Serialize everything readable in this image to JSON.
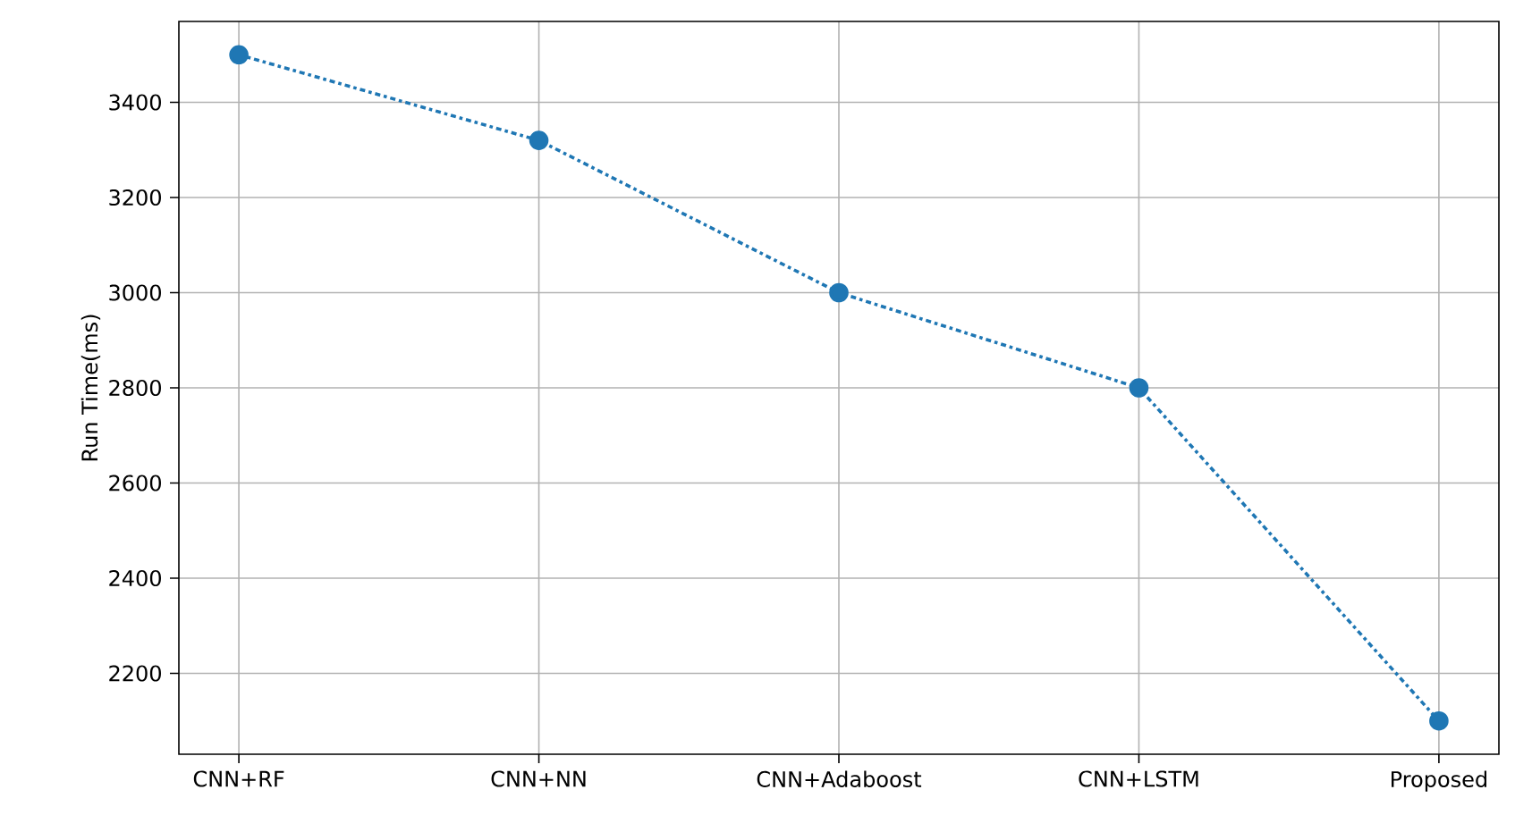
{
  "chart_data": {
    "type": "line",
    "ylabel": "Run Time(ms)",
    "categories": [
      "CNN+RF",
      "CNN+NN",
      "CNN+Adaboost",
      "CNN+LSTM",
      "Proposed"
    ],
    "series": [
      {
        "color": "#1f77b4",
        "values": [
          3500,
          3320,
          3000,
          2800,
          2100
        ]
      }
    ],
    "ylim": [
      2030,
      3570
    ],
    "yticks": [
      2200,
      2400,
      2600,
      2800,
      3000,
      3200,
      3400
    ],
    "grid": true,
    "marker": "circle",
    "line_style": "dashdot"
  }
}
